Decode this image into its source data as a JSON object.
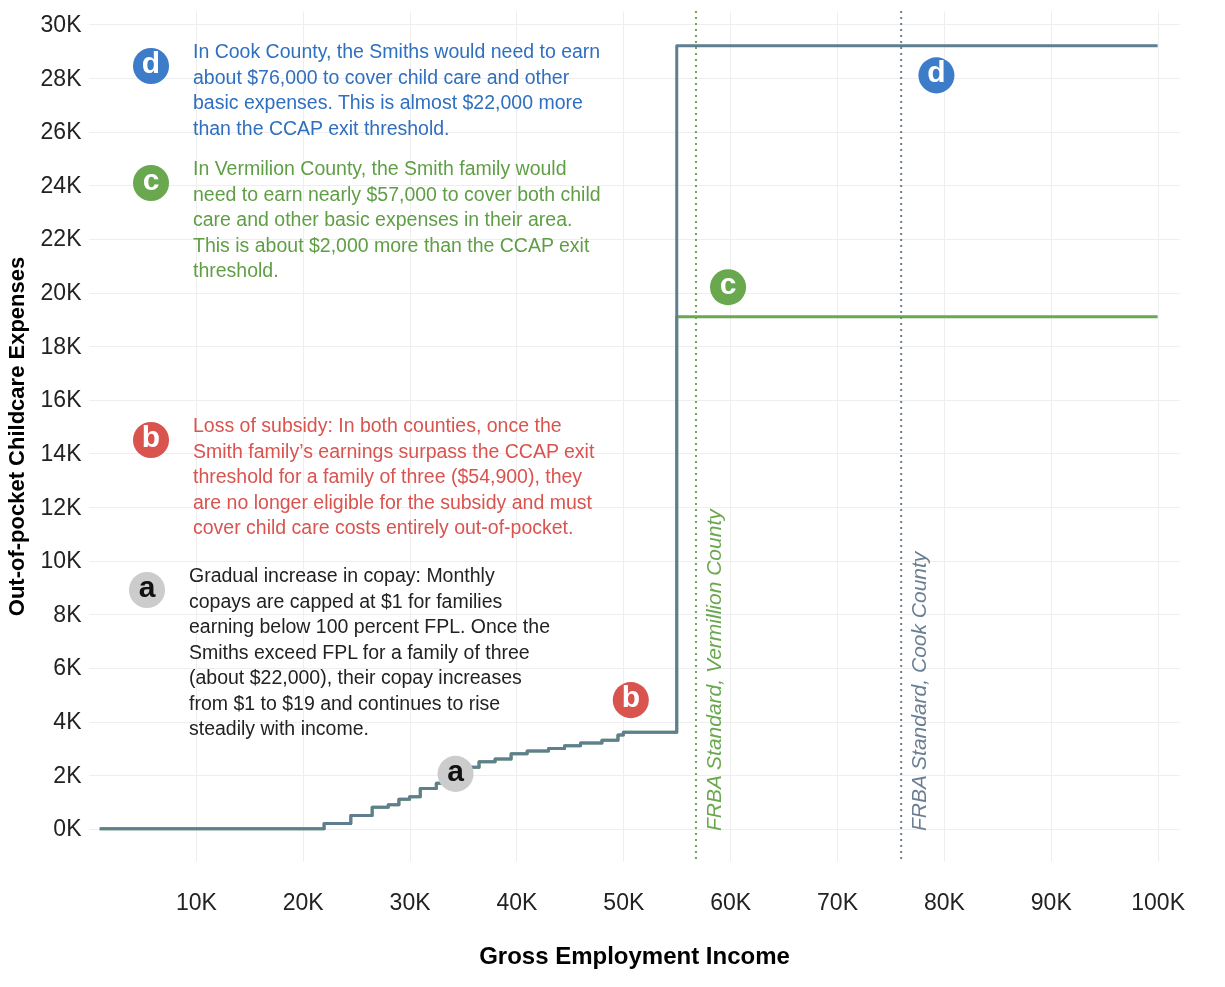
{
  "chart_data": {
    "type": "step",
    "xlabel": "Gross Employment Income",
    "ylabel": "Out-of-pocket Childcare Expenses",
    "xlim": [
      0,
      102000
    ],
    "ylim": [
      -1200,
      30500
    ],
    "xticks": [
      {
        "value": 10000,
        "label": "10K"
      },
      {
        "value": 20000,
        "label": "20K"
      },
      {
        "value": 30000,
        "label": "30K"
      },
      {
        "value": 40000,
        "label": "40K"
      },
      {
        "value": 50000,
        "label": "50K"
      },
      {
        "value": 60000,
        "label": "60K"
      },
      {
        "value": 70000,
        "label": "70K"
      },
      {
        "value": 80000,
        "label": "80K"
      },
      {
        "value": 90000,
        "label": "90K"
      },
      {
        "value": 100000,
        "label": "100K"
      }
    ],
    "yticks": [
      {
        "value": 0,
        "label": "0K"
      },
      {
        "value": 2000,
        "label": "2K"
      },
      {
        "value": 4000,
        "label": "4K"
      },
      {
        "value": 6000,
        "label": "6K"
      },
      {
        "value": 8000,
        "label": "8K"
      },
      {
        "value": 10000,
        "label": "10K"
      },
      {
        "value": 12000,
        "label": "12K"
      },
      {
        "value": 14000,
        "label": "14K"
      },
      {
        "value": 16000,
        "label": "16K"
      },
      {
        "value": 18000,
        "label": "18K"
      },
      {
        "value": 20000,
        "label": "20K"
      },
      {
        "value": 22000,
        "label": "22K"
      },
      {
        "value": 24000,
        "label": "24K"
      },
      {
        "value": 26000,
        "label": "26K"
      },
      {
        "value": 28000,
        "label": "28K"
      },
      {
        "value": 30000,
        "label": "30K"
      }
    ],
    "grid": true,
    "series": [
      {
        "color": "#6aa84f",
        "x": [
          1000,
          21000,
          22000,
          24000,
          24500,
          26000,
          26500,
          28000,
          29000,
          30000,
          31000,
          32500,
          34000,
          35500,
          36500,
          38000,
          39500,
          41000,
          43000,
          44500,
          46000,
          48000,
          49500,
          50000,
          54900,
          55000,
          100000
        ],
        "values": [
          0,
          0,
          200,
          200,
          500,
          500,
          800,
          900,
          1100,
          1200,
          1500,
          1700,
          2000,
          2300,
          2500,
          2600,
          2800,
          2900,
          3000,
          3100,
          3200,
          3300,
          3500,
          3600,
          3600,
          19100,
          19100
        ]
      },
      {
        "color": "#5f7f91",
        "x": [
          1000,
          21000,
          22000,
          24000,
          24500,
          26000,
          26500,
          28000,
          29000,
          30000,
          31000,
          32500,
          34000,
          35500,
          36500,
          38000,
          39500,
          41000,
          43000,
          44500,
          46000,
          48000,
          49500,
          50000,
          54900,
          55000,
          100000
        ],
        "values": [
          0,
          0,
          200,
          200,
          500,
          500,
          800,
          900,
          1100,
          1200,
          1500,
          1700,
          2000,
          2300,
          2500,
          2600,
          2800,
          2900,
          3000,
          3100,
          3200,
          3300,
          3500,
          3600,
          3600,
          29200,
          29200
        ]
      }
    ],
    "ref_lines": [
      {
        "axis": "x",
        "value": 56800,
        "label": "FRBA Standard, Vermillion County",
        "color": "#6aa84f",
        "line_style": "dotted"
      },
      {
        "axis": "x",
        "value": 76000,
        "label": "FRBA Standard, Cook County",
        "color": "#6b7f93",
        "line_style": "dotted"
      }
    ],
    "annotations": [
      {
        "text": "d",
        "x": 79300,
        "y": 28100
      },
      {
        "text": "c",
        "x": 59800,
        "y": 20200
      },
      {
        "text": "b",
        "x": 50700,
        "y": 4800
      },
      {
        "text": "a",
        "x": 34300,
        "y": 2050
      },
      "In Cook County, the Smiths would need to earn about $76,000 to cover child care and other basic expenses. This is almost $22,000 more than the CCAP exit threshold.",
      "In Vermilion County, the Smith family would need to earn nearly $57,000 to cover both child care and other basic expenses in their area. This is about $2,000 more than the CCAP exit threshold.",
      "Loss of subsidy: In both counties, once the Smith family’s earnings surpass the CCAP exit threshold for a family of three ($54,900), they are no longer eligible for the subsidy and must cover child care costs entirely out-of-pocket.",
      "Gradual increase in copay: Monthly copays are capped at $1 for families earning below 100 percent FPL. Once the Smiths exceed FPL for a family of three (about $22,000), their copay increases from $1 to $19 and continues to rise steadily with income."
    ]
  }
}
